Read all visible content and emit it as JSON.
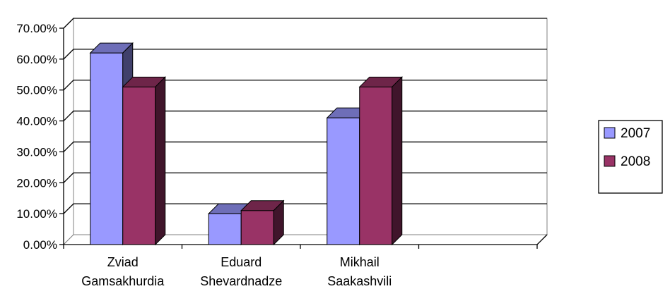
{
  "chart_data": {
    "type": "bar",
    "title": "",
    "xlabel": "",
    "ylabel": "",
    "categories": [
      [
        "Zviad",
        "Gamsakhurdia"
      ],
      [
        "Eduard",
        "Shevardnadze"
      ],
      [
        "Mikhail",
        "Saakashvili"
      ],
      [
        "",
        ""
      ]
    ],
    "series": [
      {
        "name": "2007",
        "values": [
          62,
          10,
          41,
          null
        ],
        "color": "#9999FF"
      },
      {
        "name": "2008",
        "values": [
          51,
          11,
          51,
          null
        ],
        "color": "#993366"
      }
    ],
    "ylim": [
      0,
      70
    ],
    "yticks": [
      "0.00%",
      "10.00%",
      "20.00%",
      "30.00%",
      "40.00%",
      "50.00%",
      "60.00%",
      "70.00%"
    ],
    "grid": true,
    "legend_position": "right"
  }
}
